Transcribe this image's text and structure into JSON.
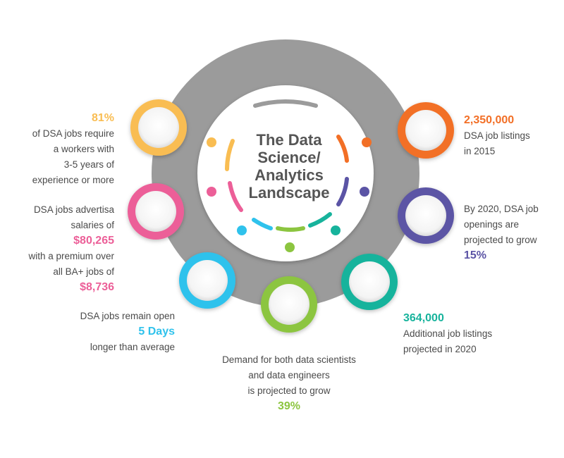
{
  "title": [
    "The Data",
    "Science/",
    "Analytics",
    "Landscape"
  ],
  "colors": {
    "gear": "#9b9b9b",
    "yellow": "#f9bd52",
    "pink": "#ec5f98",
    "cyan": "#2fc2ec",
    "green": "#8cc540",
    "teal": "#17b39c",
    "indigo": "#5b54a5",
    "orange": "#f26f26",
    "gray": "#9b9b9b"
  },
  "stats": {
    "experience": {
      "highlight": "81%",
      "lines": [
        "of DSA jobs require",
        "a workers with",
        "3-5 years of",
        "experience or more"
      ]
    },
    "salary": {
      "line1": "DSA jobs advertisa",
      "line2": "salaries of",
      "value1": "$80,265",
      "line3": "with a premium over",
      "line4": "all BA+ jobs of",
      "value2": "$8,736"
    },
    "open": {
      "line1": "DSA jobs remain open",
      "value": "5 Days",
      "line2": "longer than average"
    },
    "demand": {
      "lines": [
        "Demand for both data scientists",
        "and data engineers",
        "is projected to grow"
      ],
      "value": "39%"
    },
    "additional": {
      "value": "364,000",
      "lines": [
        "Additional job listings",
        "projected in 2020"
      ]
    },
    "growth": {
      "lines": [
        "By 2020, DSA job",
        "openings are",
        "projected to grow"
      ],
      "value": "15%"
    },
    "listings": {
      "value": "2,350,000",
      "lines": [
        "DSA job listings",
        "in 2015"
      ]
    }
  }
}
